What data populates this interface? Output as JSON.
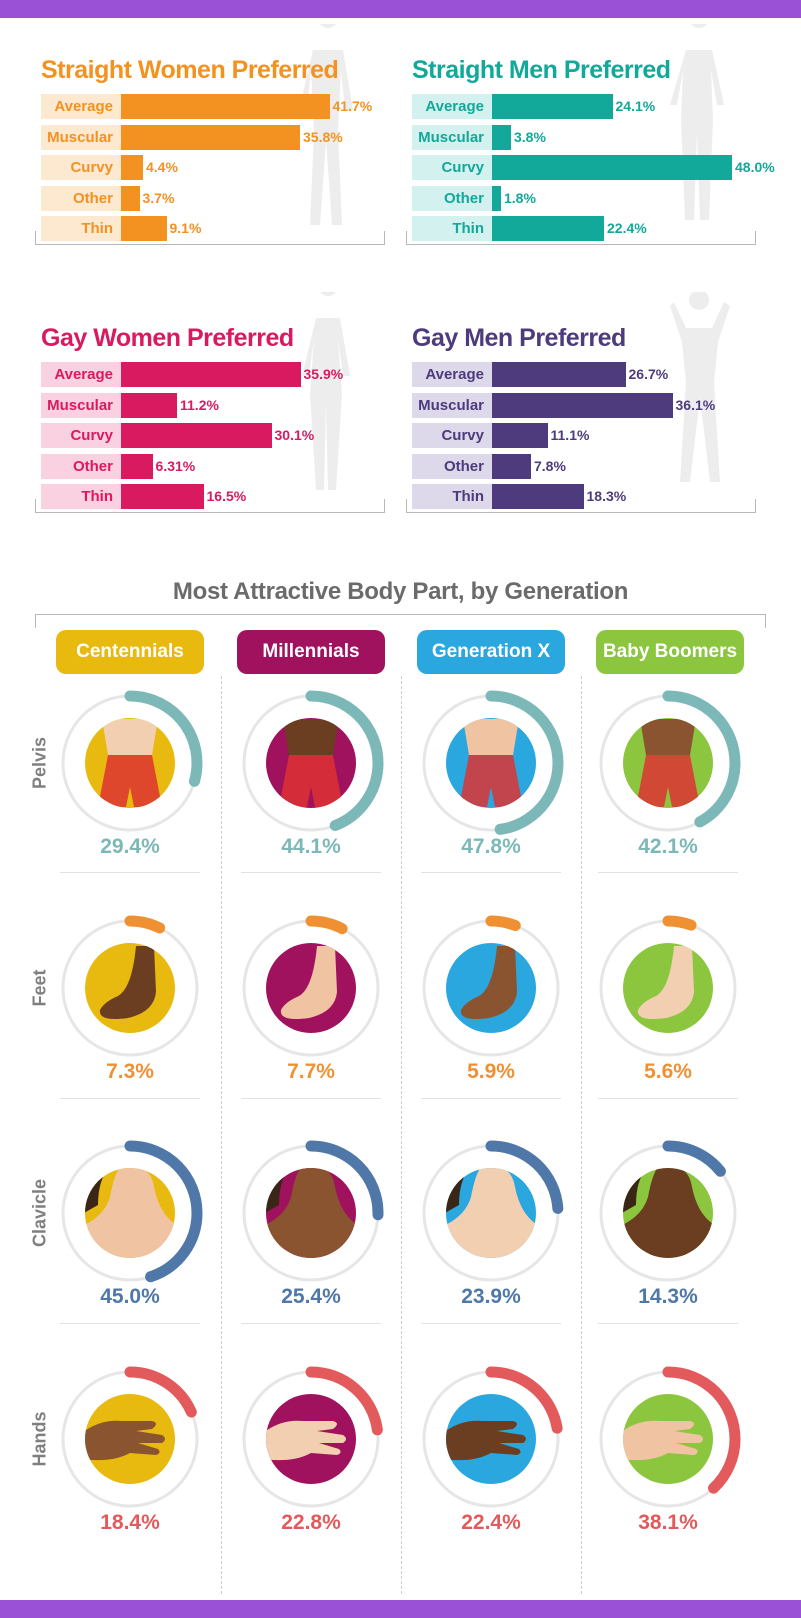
{
  "colors": {
    "orange": "#f39221",
    "orange_light": "#fde8d0",
    "teal": "#12a89a",
    "teal_light": "#d3f1ee",
    "magenta": "#d91a61",
    "magenta_light": "#fad1e0",
    "purple": "#4e3b7d",
    "purple_light": "#ddd8ea",
    "centennials": "#e8b90e",
    "millennials": "#a0115e",
    "genx": "#2aa7df",
    "boomers": "#8cc63f",
    "pelvis_arc": "#7db8b8",
    "feet_arc": "#ef9133",
    "clavicle_arc": "#4f78a8",
    "hands_arc": "#e25a5c"
  },
  "chart_data": [
    {
      "type": "bar",
      "title": "Straight Women Preferred",
      "categories": [
        "Average",
        "Muscular",
        "Curvy",
        "Other",
        "Thin"
      ],
      "values": [
        41.7,
        35.8,
        4.4,
        3.7,
        9.1
      ],
      "labels": [
        "41.7%",
        "35.8%",
        "4.4%",
        "3.7%",
        "9.1%"
      ],
      "xlim": [
        0,
        50
      ],
      "color": "orange",
      "label_bg": "orange_light"
    },
    {
      "type": "bar",
      "title": "Straight Men Preferred",
      "categories": [
        "Average",
        "Muscular",
        "Curvy",
        "Other",
        "Thin"
      ],
      "values": [
        24.1,
        3.8,
        48.0,
        1.8,
        22.4
      ],
      "labels": [
        "24.1%",
        "3.8%",
        "48.0%",
        "1.8%",
        "22.4%"
      ],
      "xlim": [
        0,
        50
      ],
      "color": "teal",
      "label_bg": "teal_light"
    },
    {
      "type": "bar",
      "title": "Gay Women Preferred",
      "categories": [
        "Average",
        "Muscular",
        "Curvy",
        "Other",
        "Thin"
      ],
      "values": [
        35.9,
        11.2,
        30.1,
        6.31,
        16.5
      ],
      "labels": [
        "35.9%",
        "11.2%",
        "30.1%",
        "6.31%",
        "16.5%"
      ],
      "xlim": [
        0,
        50
      ],
      "color": "magenta",
      "label_bg": "magenta_light"
    },
    {
      "type": "bar",
      "title": "Gay Men Preferred",
      "categories": [
        "Average",
        "Muscular",
        "Curvy",
        "Other",
        "Thin"
      ],
      "values": [
        26.7,
        36.1,
        11.1,
        7.8,
        18.3
      ],
      "labels": [
        "26.7%",
        "36.1%",
        "11.1%",
        "7.8%",
        "18.3%"
      ],
      "xlim": [
        0,
        50
      ],
      "color": "purple",
      "label_bg": "purple_light"
    },
    {
      "type": "table",
      "title": "Most Attractive Body Part, by Generation",
      "generations": [
        "Centennials",
        "Millennials",
        "Generation X",
        "Baby Boomers"
      ],
      "generation_colors": [
        "centennials",
        "millennials",
        "genx",
        "boomers"
      ],
      "body_parts": [
        {
          "name": "Pelvis",
          "arc_color": "pelvis_arc",
          "icon": "pelvis-icon",
          "values": [
            29.4,
            44.1,
            47.8,
            42.1
          ],
          "labels": [
            "29.4%",
            "44.1%",
            "47.8%",
            "42.1%"
          ]
        },
        {
          "name": "Feet",
          "arc_color": "feet_arc",
          "icon": "foot-icon",
          "values": [
            7.3,
            7.7,
            5.9,
            5.6
          ],
          "labels": [
            "7.3%",
            "7.7%",
            "5.9%",
            "5.6%"
          ]
        },
        {
          "name": "Clavicle",
          "arc_color": "clavicle_arc",
          "icon": "clavicle-icon",
          "values": [
            45.0,
            25.4,
            23.9,
            14.3
          ],
          "labels": [
            "45.0%",
            "25.4%",
            "23.9%",
            "14.3%"
          ]
        },
        {
          "name": "Hands",
          "arc_color": "hands_arc",
          "icon": "hand-icon",
          "values": [
            18.4,
            22.8,
            22.4,
            38.1
          ],
          "labels": [
            "18.4%",
            "22.8%",
            "22.4%",
            "38.1%"
          ]
        }
      ]
    }
  ]
}
